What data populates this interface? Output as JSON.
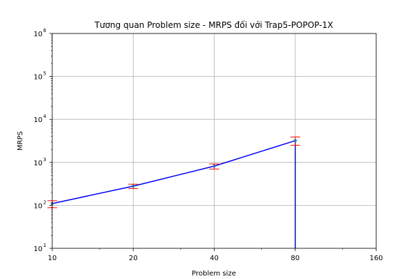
{
  "chart_data": {
    "type": "line",
    "title": "Tương quan Problem size - MRPS đối với Trap5-POPOP-1X",
    "xlabel": "Problem size",
    "ylabel": "MRPS",
    "x_scale": "log2",
    "y_scale": "log10",
    "xlim": [
      10,
      160
    ],
    "ylim": [
      10,
      1000000
    ],
    "x_ticks": [
      10,
      20,
      40,
      80,
      160
    ],
    "x_tick_labels": [
      "10",
      "20",
      "40",
      "80",
      "160"
    ],
    "y_ticks": [
      10,
      100,
      1000,
      10000,
      100000,
      1000000
    ],
    "y_tick_labels": [
      "10",
      "10",
      "10",
      "10",
      "10",
      "10"
    ],
    "y_tick_exponents": [
      "1",
      "2",
      "3",
      "4",
      "5",
      "6"
    ],
    "grid": true,
    "series": [
      {
        "x": [
          10,
          20,
          40,
          80
        ],
        "y": [
          110,
          280,
          820,
          3200
        ],
        "error_low": [
          88,
          245,
          700,
          2500
        ],
        "error_high": [
          128,
          310,
          920,
          3900
        ],
        "color": "#0000ff",
        "error_color": "#ff0000",
        "marker_color": "#1f77b4"
      }
    ],
    "drop_line": {
      "x": 80,
      "from_y": 3200,
      "to_y": 10
    }
  }
}
